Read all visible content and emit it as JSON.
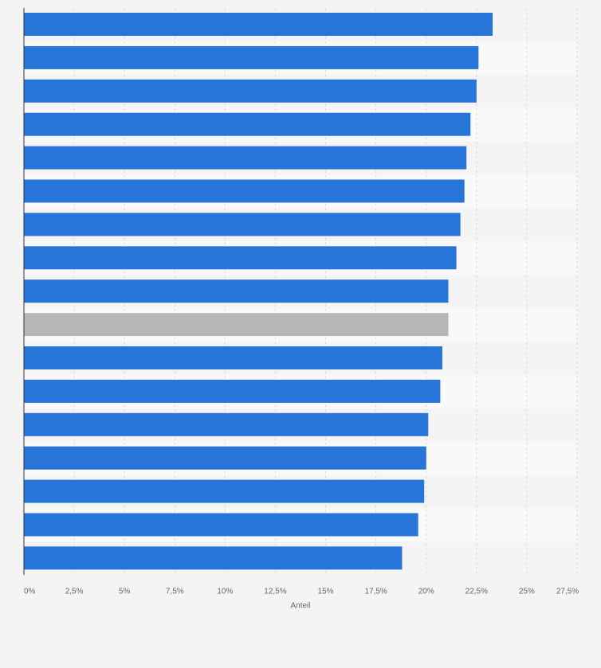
{
  "chart_data": {
    "type": "bar",
    "orientation": "horizontal",
    "xlabel": "Anteil",
    "xlim": [
      0,
      27.5
    ],
    "xticks": [
      0,
      2.5,
      5,
      7.5,
      10,
      12.5,
      15,
      17.5,
      20,
      22.5,
      25,
      27.5
    ],
    "xtick_labels": [
      "0%",
      "2,5%",
      "5%",
      "7,5%",
      "10%",
      "12,5%",
      "15%",
      "17,5%",
      "20%",
      "22,5%",
      "25%",
      "27,5%"
    ],
    "grid": true,
    "series": [
      {
        "values": [
          23.3,
          22.6,
          22.5,
          22.2,
          22.0,
          21.9,
          21.7,
          21.5,
          21.1,
          21.1,
          20.8,
          20.7,
          20.1,
          20.0,
          19.9,
          19.6,
          18.8
        ],
        "colors": [
          "#2775d9",
          "#2775d9",
          "#2775d9",
          "#2775d9",
          "#2775d9",
          "#2775d9",
          "#2775d9",
          "#2775d9",
          "#2775d9",
          "#b7b7b7",
          "#2775d9",
          "#2775d9",
          "#2775d9",
          "#2775d9",
          "#2775d9",
          "#2775d9",
          "#2775d9"
        ]
      }
    ],
    "colors": {
      "bar": "#2775d9",
      "highlight": "#b7b7b7",
      "background": "#f4f4f4",
      "band": "#f9f9f9",
      "grid": "#dddddd",
      "axis": "#333333",
      "text": "#666666"
    }
  }
}
